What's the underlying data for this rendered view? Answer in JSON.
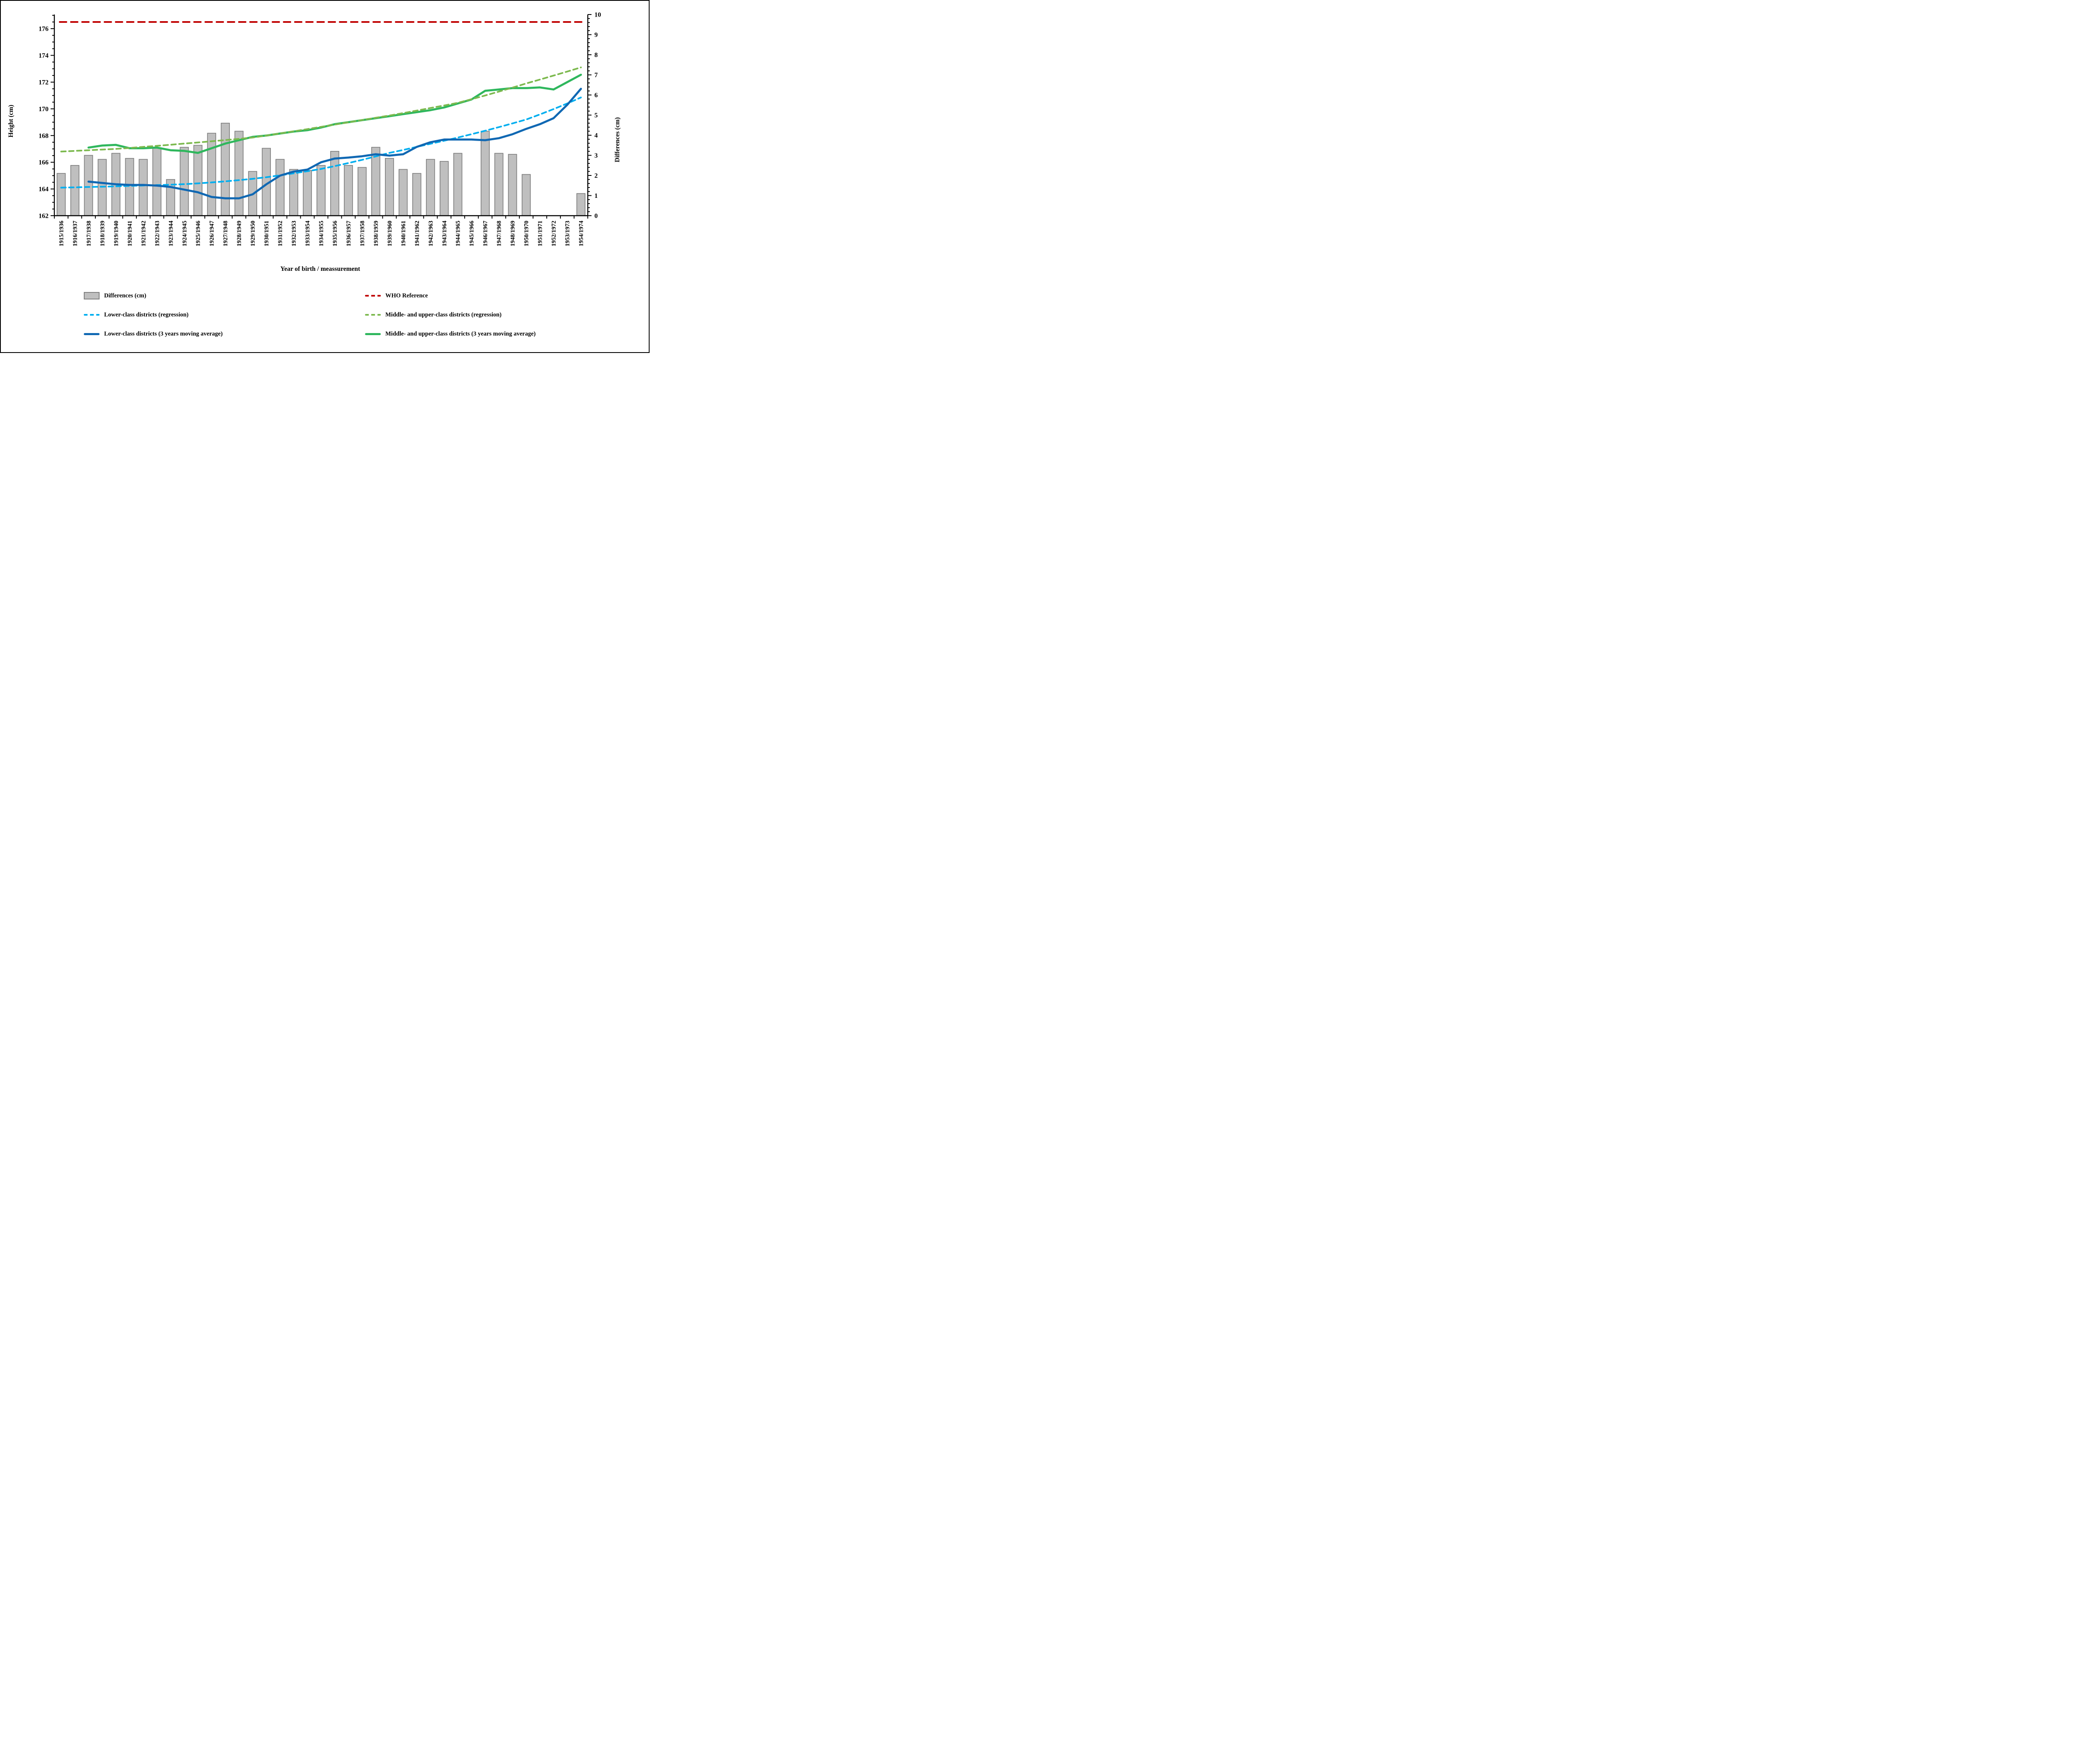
{
  "frame": {
    "background": "#FFFFFF",
    "border_color": "#000000"
  },
  "colors": {
    "bar_fill": "#BFBFBF",
    "bar_stroke": "#7F7F7F",
    "who_red": "#C00000",
    "lower_regression_cyan": "#00AEEF",
    "lower_ma_blue": "#1068B3",
    "middle_regression_olive": "#7CB94E",
    "middle_ma_green": "#2FB75D",
    "axis_black": "#000000"
  },
  "chart_data": {
    "type": "bar",
    "subtype": "bar + line combo, dual y-axis",
    "title": "",
    "categories": [
      "1915/1936",
      "1916/1937",
      "1917/1938",
      "1918/1939",
      "1919/1940",
      "1920/1941",
      "1921/1942",
      "1922/1943",
      "1923/1944",
      "1924/1945",
      "1925/1946",
      "1926/1947",
      "1927/1948",
      "1928/1949",
      "1929/1950",
      "1930/1951",
      "1931/1952",
      "1932/1953",
      "1933/1954",
      "1934/1955",
      "1935/1956",
      "1936/1957",
      "1937/1958",
      "1938/1959",
      "1939/1960",
      "1940/1961",
      "1941/1962",
      "1942/1963",
      "1943/1964",
      "1944/1965",
      "1945/1966",
      "1946/1967",
      "1947/1968",
      "1948/1969",
      "1950/1970",
      "1951/1971",
      "1952/1972",
      "1953/1973",
      "1954/1974"
    ],
    "x_axis": {
      "title": "Year of birth / meassurement"
    },
    "left_axis": {
      "title": "Height (cm)",
      "min": 162,
      "max": 177.06,
      "tick_labels": [
        162,
        164,
        166,
        168,
        170,
        172,
        174,
        176
      ],
      "minor_step": 0.5,
      "grid": false
    },
    "right_axis": {
      "title": "Differences (cm)",
      "min": 0,
      "max": 10,
      "tick_labels": [
        0,
        1,
        2,
        3,
        4,
        5,
        6,
        7,
        8,
        9,
        10
      ],
      "minor_step": 0.2,
      "grid": false
    },
    "bar_series": {
      "name": "Differences (cm)",
      "axis": "right",
      "values": [
        2.1,
        2.5,
        3.0,
        2.8,
        3.1,
        2.85,
        2.8,
        3.35,
        1.8,
        3.4,
        3.5,
        4.1,
        4.6,
        4.2,
        2.2,
        3.35,
        2.8,
        2.3,
        2.25,
        2.5,
        3.2,
        2.5,
        2.4,
        3.4,
        2.85,
        2.3,
        2.1,
        2.8,
        2.7,
        3.1,
        null,
        4.2,
        3.1,
        3.05,
        2.05,
        null,
        null,
        null,
        1.1
      ]
    },
    "line_series": [
      {
        "key": "who",
        "name": "WHO Reference",
        "axis": "left",
        "style": "dashed",
        "constant": 176.5
      },
      {
        "key": "middle_ma",
        "name": "Middle- and upper-class districts (3 years moving average)",
        "axis": "left",
        "style": "solid",
        "values": [
          null,
          null,
          167.1,
          167.25,
          167.3,
          167.05,
          167.05,
          167.1,
          166.9,
          166.85,
          166.7,
          167.05,
          167.4,
          167.65,
          167.9,
          168.0,
          168.15,
          168.3,
          168.4,
          168.6,
          168.85,
          169.0,
          169.15,
          169.3,
          169.45,
          169.6,
          169.75,
          169.9,
          170.1,
          170.4,
          170.7,
          171.35,
          171.45,
          171.55,
          171.55,
          171.6,
          171.45,
          172.0,
          172.55
        ]
      },
      {
        "key": "middle_regression",
        "name": "Middle- and upper-class districts (regression)",
        "axis": "left",
        "style": "dashed",
        "values": [
          166.8,
          166.85,
          166.9,
          166.95,
          167.0,
          167.07,
          167.15,
          167.23,
          167.31,
          167.4,
          167.48,
          167.57,
          167.66,
          167.75,
          167.85,
          168.0,
          168.16,
          168.32,
          168.48,
          168.65,
          168.82,
          168.99,
          169.16,
          169.33,
          169.5,
          169.68,
          169.87,
          170.06,
          170.25,
          170.45,
          170.72,
          171.0,
          171.29,
          171.59,
          171.9,
          172.19,
          172.49,
          172.79,
          173.1
        ]
      },
      {
        "key": "lower_regression",
        "name": "Lower-class districts (regression)",
        "axis": "left",
        "style": "dashed",
        "values": [
          164.1,
          164.12,
          164.15,
          164.17,
          164.2,
          164.23,
          164.26,
          164.29,
          164.32,
          164.36,
          164.42,
          164.49,
          164.57,
          164.66,
          164.76,
          164.88,
          165.02,
          165.17,
          165.33,
          165.5,
          165.71,
          165.94,
          166.18,
          166.44,
          166.7,
          166.92,
          167.15,
          167.38,
          167.61,
          167.85,
          168.1,
          168.36,
          168.63,
          168.91,
          169.2,
          169.58,
          169.98,
          170.4,
          170.85
        ]
      },
      {
        "key": "lower_ma",
        "name": "Lower-class districts (3 years moving average)",
        "axis": "left",
        "style": "solid",
        "values": [
          null,
          null,
          164.55,
          164.45,
          164.35,
          164.3,
          164.3,
          164.25,
          164.15,
          163.95,
          163.75,
          163.4,
          163.3,
          163.3,
          163.6,
          164.35,
          165.0,
          165.3,
          165.45,
          166.0,
          166.28,
          166.35,
          166.45,
          166.6,
          166.5,
          166.6,
          167.15,
          167.5,
          167.7,
          167.7,
          167.7,
          167.65,
          167.8,
          168.1,
          168.5,
          168.85,
          169.3,
          170.3,
          171.5
        ]
      }
    ],
    "layout": {
      "legend_position": "bottom, two columns",
      "plot_border": "left/right/bottom axes only"
    }
  },
  "legend": {
    "columns": [
      {
        "items": [
          {
            "name": "differences",
            "swatch": "bar",
            "label": "Differences (cm)"
          },
          {
            "name": "lower-regression",
            "swatch": "dash",
            "color_key": "lower_regression_cyan",
            "label": "Lower-class districts (regression)"
          },
          {
            "name": "lower-ma",
            "swatch": "line",
            "color_key": "lower_ma_blue",
            "label": "Lower-class districts (3 years moving average)"
          }
        ]
      },
      {
        "items": [
          {
            "name": "who",
            "swatch": "dash",
            "color_key": "who_red",
            "label": "WHO Reference"
          },
          {
            "name": "middle-regression",
            "swatch": "dash",
            "color_key": "middle_regression_olive",
            "label": "Middle- and upper-class districts (regression)"
          },
          {
            "name": "middle-ma",
            "swatch": "line",
            "color_key": "middle_ma_green",
            "label": "Middle- and upper-class districts (3 years moving average)"
          }
        ]
      }
    ]
  }
}
